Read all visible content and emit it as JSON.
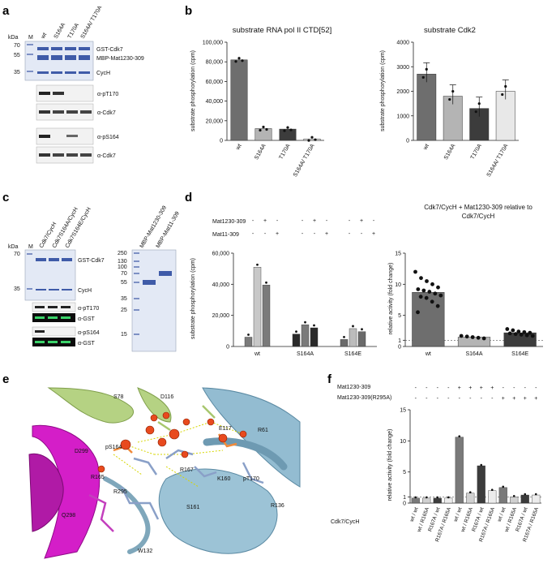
{
  "panels": {
    "a": "a",
    "b": "b",
    "c": "c",
    "d": "d",
    "e": "e",
    "f": "f"
  },
  "panel_a": {
    "kda": "kDa",
    "lane_labels": [
      "M",
      "wt",
      "S164A",
      "T170A",
      "S164A/ T170A"
    ],
    "markers": [
      "70",
      "55",
      "35"
    ],
    "band_labels": [
      "GST-Cdk7",
      "MBP-Mat1230-309",
      "CycH"
    ],
    "blot_labels": [
      "α-pT170",
      "α-Cdk7",
      "α-pS164",
      "α-Cdk7"
    ]
  },
  "panel_b_left": {
    "title": "substrate RNA pol II CTD[52]",
    "ylabel": "substrate phosphorylation (cpm)"
  },
  "panel_b_right": {
    "title": "substrate Cdk2",
    "ylabel": "substrate phosphorylation (cpm)"
  },
  "panel_c": {
    "kda": "kDa",
    "lane_labels": [
      "M",
      "Cdk7/CycH",
      "Cdk7S164A/CycH",
      "Cdk7S164E/CycH"
    ],
    "markers": [
      "70",
      "55",
      "35"
    ],
    "band_labels": [
      "GST-Cdk7",
      "CycH"
    ],
    "blot_labels": [
      "α-pT170",
      "α-GST",
      "α-pS164",
      "α-GST"
    ],
    "gel2_lanes": [
      "MBP-Mat1230-309",
      "MBP-Mat11-309"
    ],
    "gel2_markers": [
      "250",
      "130",
      "100",
      "70",
      "55",
      "35",
      "25",
      "15"
    ]
  },
  "panel_d": {
    "mat1_a_label": "Mat1230-309",
    "mat1_b_label": "Mat11-309",
    "row_a_signs": [
      "-",
      "+",
      "-",
      "-",
      "+",
      "-",
      "-",
      "+",
      "-"
    ],
    "row_b_signs": [
      "-",
      "-",
      "+",
      "-",
      "-",
      "+",
      "-",
      "-",
      "+"
    ],
    "ylabel_left": "substrate phosphorylation (cpm)",
    "right_title": "Cdk7/CycH + Mat1230-309 relative to Cdk7/CycH",
    "ylabel_right": "relative activity (fold change)"
  },
  "panel_e": {
    "labels": [
      "S78",
      "D116",
      "E117",
      "R61",
      "pS164",
      "D299",
      "R165",
      "R167",
      "K160",
      "pT170",
      "R295",
      "S161",
      "R136",
      "Q298",
      "W132"
    ]
  },
  "panel_f": {
    "mat1_label": "Mat1230-309",
    "mat1_mut_label": "Mat1230-309(R295A)",
    "row1_signs": [
      "-",
      "-",
      "-",
      "-",
      "+",
      "+",
      "+",
      "+",
      "-",
      "-",
      "-",
      "-"
    ],
    "row2_signs": [
      "-",
      "-",
      "-",
      "-",
      "-",
      "-",
      "-",
      "-",
      "+",
      "+",
      "+",
      "+"
    ],
    "ylabel": "relative activity (fold change)",
    "row_label": "Cdk7/CycH"
  },
  "chart_data": [
    {
      "type": "bar",
      "title": "substrate RNA pol II CTD[52]",
      "ylabel": "substrate phosphorylation (cpm)",
      "categories": [
        "wt",
        "S164A",
        "T170A",
        "S164A/ T170A"
      ],
      "values": [
        82000,
        12000,
        11500,
        1500
      ],
      "ylim": [
        0,
        100000
      ],
      "yticks": [
        "0",
        "20,000",
        "40,000",
        "60,000",
        "80,000",
        "100,000"
      ],
      "colors": [
        "#6e6e6e",
        "#b4b4b4",
        "#3c3c3c",
        "#e8e8e8"
      ]
    },
    {
      "type": "bar",
      "title": "substrate Cdk2",
      "ylabel": "substrate phosphorylation (cpm)",
      "categories": [
        "wt",
        "S164A",
        "T170A",
        "S164A/ T170A"
      ],
      "values": [
        2700,
        1800,
        1300,
        2000
      ],
      "ylim": [
        0,
        4000
      ],
      "yticks": [
        "0",
        "1000",
        "2000",
        "3000",
        "4000"
      ],
      "colors": [
        "#6e6e6e",
        "#b4b4b4",
        "#3c3c3c",
        "#e8e8e8"
      ]
    },
    {
      "type": "bar",
      "ylabel": "substrate phosphorylation (cpm)",
      "categories": [
        "wt",
        "S164A",
        "S164E"
      ],
      "series": [
        {
          "values": [
            6000,
            8000,
            4500
          ]
        },
        {
          "values": [
            51000,
            14000,
            11500
          ]
        },
        {
          "values": [
            39500,
            12000,
            9500
          ]
        }
      ],
      "ylim": [
        0,
        60000
      ],
      "yticks": [
        "0",
        "20,000",
        "40,000",
        "60,000"
      ],
      "colors": [
        [
          "#7a7a7a",
          "#2a2a2a",
          "#6a6a6a"
        ],
        [
          "#c8c8c8",
          "#7a7a7a",
          "#bcbcbc"
        ],
        [
          "#7a7a7a",
          "#2a2a2a",
          "#6a6a6a"
        ]
      ]
    },
    {
      "type": "scatter",
      "title": "Cdk7/CycH + Mat1230-309 relative to Cdk7/CycH",
      "ylabel": "relative activity (fold change)",
      "categories": [
        "wt",
        "S164A",
        "S164E"
      ],
      "values": [
        8.7,
        1.5,
        2.2
      ],
      "ylim": [
        0,
        15
      ],
      "yticks": [
        "0",
        "1",
        "5",
        "10",
        "15"
      ],
      "colors": [
        "#6e6e6e",
        "#b4b4b4",
        "#3c3c3c"
      ]
    },
    {
      "type": "bar",
      "ylabel": "relative activity (fold change)",
      "categories": [
        "wt / wt",
        "wt / R165A",
        "R167A / wt",
        "R167A / R165A",
        "wt / wt",
        "wt / R165A",
        "R167A / wt",
        "R167A / R165A",
        "wt / wt",
        "wt / R165A",
        "R167A / wt",
        "R167A / R165A"
      ],
      "values": [
        0.8,
        0.8,
        0.8,
        0.8,
        10.6,
        1.6,
        6.0,
        2.0,
        2.5,
        1.0,
        1.3,
        1.3
      ],
      "ylim": [
        0,
        15
      ],
      "yticks": [
        "0",
        "1",
        "5",
        "10",
        "15"
      ],
      "colors": [
        "#7a7a7a",
        "#d0d0d0",
        "#3c3c3c",
        "#ececec",
        "#7a7a7a",
        "#d0d0d0",
        "#3c3c3c",
        "#ececec",
        "#7a7a7a",
        "#d0d0d0",
        "#3c3c3c",
        "#ececec"
      ]
    }
  ]
}
